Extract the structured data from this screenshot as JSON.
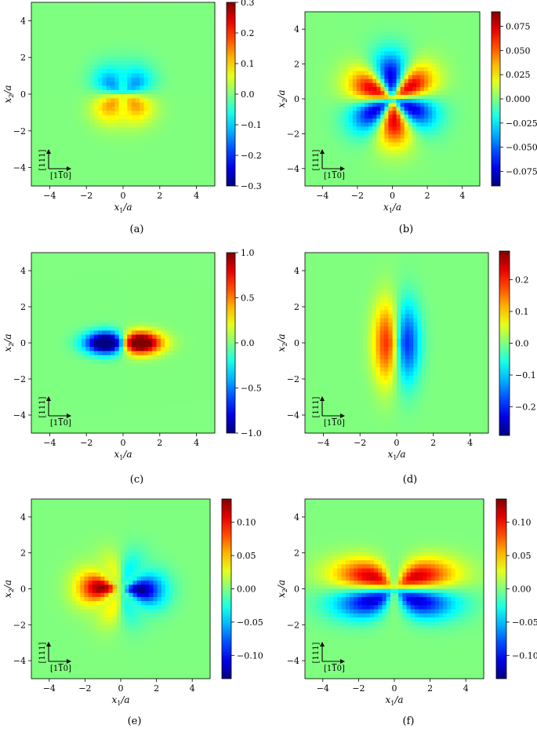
{
  "chart_data": [
    {
      "type": "heatmap",
      "caption": "(a)",
      "xlabel": "x1/a",
      "ylabel": "x2/a",
      "xlim": [
        -5,
        5
      ],
      "ylim": [
        -5,
        5
      ],
      "xticks": [
        "−4",
        "−2",
        "0",
        "2",
        "4"
      ],
      "yticks": [
        "4",
        "2",
        "0",
        "−2",
        "−4"
      ],
      "colormap": "jet",
      "vmin": -0.3,
      "vmax": 0.3,
      "colorbar_ticks": [
        "0.3",
        "0.2",
        "0.1",
        "0.0",
        "−0.1",
        "−0.2",
        "−0.3"
      ],
      "pattern": "two lobes split horizontally: negative (blue) above the x1 axis, positive (red) below, spreading along ±30° directions",
      "directions": [
        "[111]",
        "[1-10]"
      ]
    },
    {
      "type": "heatmap",
      "caption": "(b)",
      "xlabel": "x1/a",
      "ylabel": "x2/a",
      "xlim": [
        -5,
        5
      ],
      "ylim": [
        -5,
        5
      ],
      "xticks": [
        "−4",
        "−2",
        "0",
        "2",
        "4"
      ],
      "yticks": [
        "4",
        "2",
        "0",
        "−2",
        "−4"
      ],
      "colormap": "jet",
      "vmin": -0.09,
      "vmax": 0.09,
      "colorbar_ticks": [
        "0.075",
        "0.050",
        "0.025",
        "0.000",
        "−0.025",
        "−0.050",
        "−0.075"
      ],
      "pattern": "six-lobed pattern: positive lobes at upper-left, upper-right and bottom; negative lobes at lower-left, lower-right and top",
      "directions": [
        "[111]",
        "[1-10]"
      ]
    },
    {
      "type": "heatmap",
      "caption": "(c)",
      "xlabel": "x1/a",
      "ylabel": "x2/a",
      "xlim": [
        -5,
        5
      ],
      "ylim": [
        -5,
        5
      ],
      "xticks": [
        "−4",
        "−2",
        "0",
        "2",
        "4"
      ],
      "yticks": [
        "4",
        "2",
        "0",
        "−2",
        "−4"
      ],
      "colormap": "jet",
      "vmin": -1.0,
      "vmax": 1.0,
      "colorbar_ticks": [
        "1.0",
        "0.5",
        "0.0",
        "−0.5",
        "−1.0"
      ],
      "pattern": "dipole along x1: negative (blue) to the left of the origin, positive (red) to the right",
      "directions": [
        "[111]",
        "[1-10]"
      ]
    },
    {
      "type": "heatmap",
      "caption": "(d)",
      "xlabel": "x1/a",
      "ylabel": "x2/a",
      "xlim": [
        -5,
        5
      ],
      "ylim": [
        -5,
        5
      ],
      "xticks": [
        "−4",
        "−2",
        "0",
        "2",
        "4"
      ],
      "yticks": [
        "4",
        "2",
        "0",
        "−2",
        "−4"
      ],
      "colormap": "jet",
      "vmin": -0.29,
      "vmax": 0.29,
      "colorbar_ticks": [
        "0.2",
        "0.1",
        "0.0",
        "−0.1",
        "−0.2"
      ],
      "pattern": "two vertical lobes: positive (red) left of the x2 axis, negative (blue) right, elongated vertically",
      "directions": [
        "[111]",
        "[1-10]"
      ]
    },
    {
      "type": "heatmap",
      "caption": "(e)",
      "xlabel": "x1/a",
      "ylabel": "x2/a",
      "xlim": [
        -5,
        5
      ],
      "ylim": [
        -5,
        5
      ],
      "xticks": [
        "−4",
        "−2",
        "0",
        "2",
        "4"
      ],
      "yticks": [
        "4",
        "2",
        "0",
        "−2",
        "−4"
      ],
      "colormap": "jet",
      "vmin": -0.135,
      "vmax": 0.135,
      "colorbar_ticks": [
        "0.10",
        "0.05",
        "0.00",
        "−0.05",
        "−0.10"
      ],
      "pattern": "four-lobed pattern: positive (red) lobes on the left side, negative (blue) lobes on the right side along ±30° directions",
      "directions": [
        "[111]",
        "[1-10]"
      ]
    },
    {
      "type": "heatmap",
      "caption": "(f)",
      "xlabel": "x1/a",
      "ylabel": "x2/a",
      "xlim": [
        -5,
        5
      ],
      "ylim": [
        -5,
        5
      ],
      "xticks": [
        "−4",
        "−2",
        "0",
        "2",
        "4"
      ],
      "yticks": [
        "4",
        "2",
        "0",
        "−2",
        "−4"
      ],
      "colormap": "jet",
      "vmin": -0.135,
      "vmax": 0.135,
      "colorbar_ticks": [
        "0.10",
        "0.05",
        "0.00",
        "−0.05",
        "−0.10"
      ],
      "pattern": "four-lobed pattern: positive (red) lobes in the upper half, negative (blue) lobes in the lower half along ±30° directions",
      "directions": [
        "[111]",
        "[1-10]"
      ]
    }
  ]
}
